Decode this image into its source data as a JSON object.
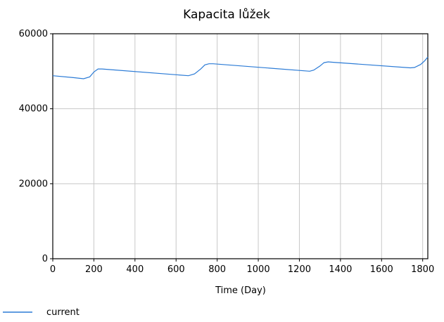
{
  "chart_data": {
    "type": "line",
    "title": "Kapacita lůžek",
    "xlabel": "Time (Day)",
    "ylabel": "",
    "xlim": [
      0,
      1825
    ],
    "ylim": [
      0,
      60000
    ],
    "xticks": [
      0,
      200,
      400,
      600,
      800,
      1000,
      1200,
      1400,
      1600,
      1800
    ],
    "yticks": [
      0,
      20000,
      40000,
      60000
    ],
    "grid": true,
    "legend_position": "bottom-left",
    "series": [
      {
        "name": "current",
        "color": "#2b7bd6",
        "x": [
          0,
          100,
          150,
          180,
          200,
          220,
          240,
          660,
          690,
          720,
          740,
          760,
          780,
          1250,
          1270,
          1300,
          1320,
          1340,
          1360,
          1740,
          1760,
          1790,
          1810,
          1825
        ],
        "y": [
          48800,
          48300,
          48000,
          48500,
          49800,
          50600,
          50600,
          48800,
          49300,
          50600,
          51700,
          52000,
          52000,
          50000,
          50300,
          51400,
          52300,
          52500,
          52400,
          50900,
          51000,
          51800,
          52800,
          53800
        ]
      }
    ]
  }
}
